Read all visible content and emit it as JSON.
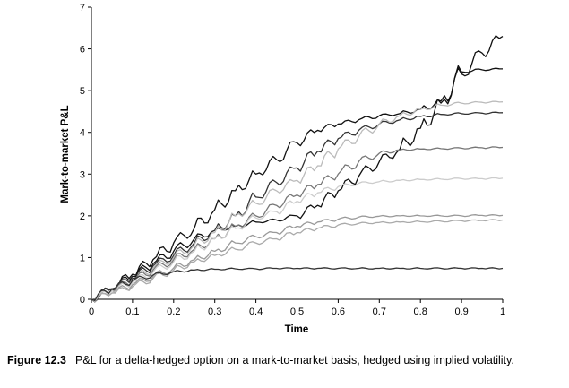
{
  "chart_data": {
    "type": "line",
    "xlabel": "Time",
    "ylabel": "Mark-to-market P&L",
    "xlim": [
      0,
      1
    ],
    "ylim": [
      0,
      7
    ],
    "xticks": [
      "0",
      "0.1",
      "0.2",
      "0.3",
      "0.4",
      "0.5",
      "0.6",
      "0.7",
      "0.8",
      "0.9",
      "1"
    ],
    "yticks": [
      "0",
      "1",
      "2",
      "3",
      "4",
      "5",
      "6",
      "7"
    ],
    "grid": false,
    "x": [
      0,
      0.05,
      0.1,
      0.15,
      0.2,
      0.25,
      0.3,
      0.35,
      0.4,
      0.45,
      0.5,
      0.55,
      0.6,
      0.65,
      0.7,
      0.75,
      0.8,
      0.85,
      0.9,
      0.95,
      1.0
    ],
    "series": [
      {
        "color": "#111111",
        "values": [
          0,
          0.25,
          0.6,
          0.95,
          1.35,
          1.7,
          2.15,
          2.6,
          3.0,
          3.35,
          3.75,
          4.05,
          4.2,
          4.3,
          4.4,
          4.45,
          4.55,
          4.75,
          5.45,
          5.5,
          5.52
        ]
      },
      {
        "color": "#111111",
        "values": [
          0,
          0.25,
          0.55,
          0.85,
          1.15,
          1.45,
          1.65,
          1.75,
          1.85,
          1.9,
          2.0,
          2.25,
          2.6,
          2.95,
          3.3,
          3.6,
          4.1,
          4.7,
          5.4,
          5.9,
          6.3
        ]
      },
      {
        "color": "#333333",
        "values": [
          0,
          0.25,
          0.5,
          0.8,
          1.05,
          1.35,
          1.65,
          2.0,
          2.45,
          2.8,
          3.15,
          3.55,
          3.85,
          4.05,
          4.2,
          4.3,
          4.38,
          4.43,
          4.45,
          4.46,
          4.47
        ]
      },
      {
        "color": "#bbbbbb",
        "values": [
          0,
          0.2,
          0.45,
          0.75,
          1.0,
          1.3,
          1.6,
          2.0,
          2.3,
          2.6,
          2.85,
          3.2,
          3.6,
          3.9,
          4.2,
          4.4,
          4.55,
          4.65,
          4.7,
          4.72,
          4.73
        ]
      },
      {
        "color": "#777777",
        "values": [
          0,
          0.2,
          0.45,
          0.7,
          0.95,
          1.2,
          1.45,
          1.75,
          2.0,
          2.25,
          2.5,
          2.75,
          3.0,
          3.3,
          3.5,
          3.58,
          3.6,
          3.61,
          3.62,
          3.63,
          3.64
        ]
      },
      {
        "color": "#cccccc",
        "values": [
          0,
          0.2,
          0.4,
          0.65,
          0.9,
          1.15,
          1.45,
          1.7,
          1.95,
          2.1,
          2.35,
          2.55,
          2.7,
          2.78,
          2.82,
          2.85,
          2.87,
          2.88,
          2.89,
          2.89,
          2.9
        ]
      },
      {
        "color": "#999999",
        "values": [
          0,
          0.15,
          0.35,
          0.55,
          0.75,
          0.95,
          1.15,
          1.35,
          1.5,
          1.6,
          1.75,
          1.85,
          1.92,
          1.97,
          1.99,
          2.0,
          2.0,
          2.0,
          2.0,
          2.01,
          2.01
        ]
      },
      {
        "color": "#aaaaaa",
        "values": [
          0,
          0.15,
          0.3,
          0.5,
          0.7,
          0.9,
          1.05,
          1.2,
          1.35,
          1.45,
          1.6,
          1.7,
          1.78,
          1.82,
          1.84,
          1.85,
          1.86,
          1.87,
          1.88,
          1.89,
          1.9
        ]
      },
      {
        "color": "#333333",
        "values": [
          0,
          0.25,
          0.45,
          0.58,
          0.66,
          0.7,
          0.72,
          0.73,
          0.73,
          0.74,
          0.74,
          0.74,
          0.74,
          0.74,
          0.74,
          0.74,
          0.74,
          0.74,
          0.74,
          0.74,
          0.74
        ]
      }
    ]
  },
  "caption": {
    "label": "Figure 12.3",
    "text": "P&L for a delta-hedged option on a mark-to-market basis, hedged using implied volatility."
  }
}
